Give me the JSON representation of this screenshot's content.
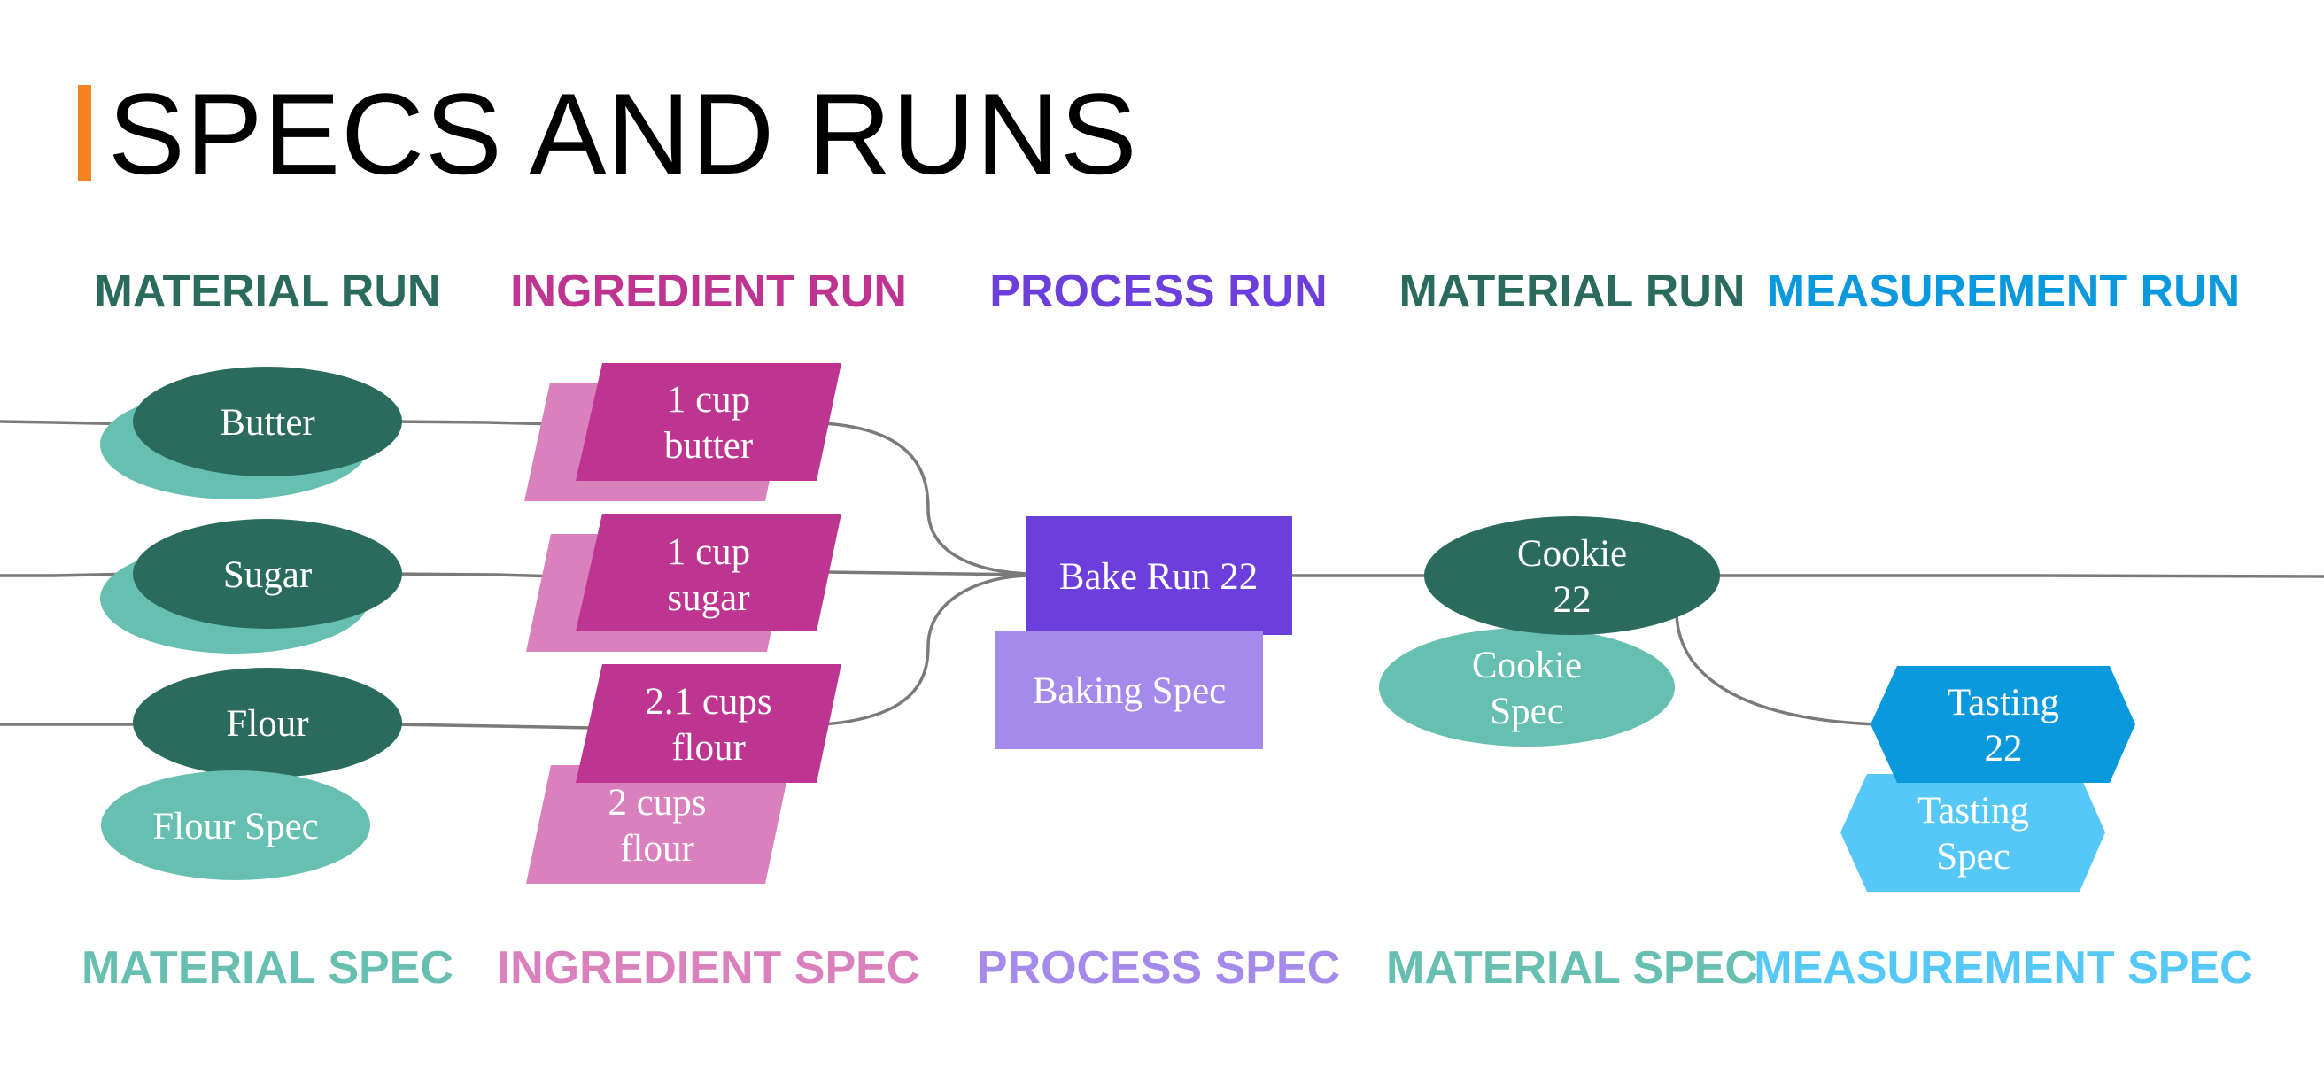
{
  "title": "SPECS AND RUNS",
  "colors": {
    "accent_bar": "#f58220",
    "material_run": "#2a6b5e",
    "material_spec": "#66bfb0",
    "ingredient_run": "#bd3590",
    "ingredient_spec": "#da80bd",
    "process_run": "#6c3fdc",
    "process_spec": "#a68aeb",
    "measurement_run": "#0a99dc",
    "measurement_spec": "#55c8f8",
    "edge": "#7a7a7a"
  },
  "headers": {
    "run": {
      "material_1": "MATERIAL RUN",
      "ingredient": "INGREDIENT RUN",
      "process": "PROCESS RUN",
      "material_2": "MATERIAL RUN",
      "measurement": "MEASUREMENT RUN"
    },
    "spec": {
      "material_1": "MATERIAL SPEC",
      "ingredient": "INGREDIENT SPEC",
      "process": "PROCESS SPEC",
      "material_2": "MATERIAL SPEC",
      "measurement": "MEASUREMENT SPEC"
    }
  },
  "nodes": {
    "butter": {
      "lines": [
        "Butter"
      ]
    },
    "sugar": {
      "lines": [
        "Sugar"
      ]
    },
    "flour": {
      "lines": [
        "Flour"
      ]
    },
    "flour_spec": {
      "lines": [
        "Flour Spec"
      ]
    },
    "butter_ingredient": {
      "lines": [
        "1 cup",
        "butter"
      ]
    },
    "sugar_ingredient": {
      "lines": [
        "1 cup",
        "sugar"
      ]
    },
    "flour_ingredient": {
      "lines": [
        "2.1 cups",
        "flour"
      ]
    },
    "flour_ingredient_spec": {
      "lines": [
        "2 cups",
        "flour"
      ]
    },
    "bake_run": {
      "lines": [
        "Bake Run 22"
      ]
    },
    "baking_spec": {
      "lines": [
        "Baking Spec"
      ]
    },
    "cookie": {
      "lines": [
        "Cookie",
        "22"
      ]
    },
    "cookie_spec": {
      "lines": [
        "Cookie",
        "Spec"
      ]
    },
    "tasting": {
      "lines": [
        "Tasting",
        "22"
      ]
    },
    "tasting_spec": {
      "lines": [
        "Tasting",
        "Spec"
      ]
    }
  }
}
